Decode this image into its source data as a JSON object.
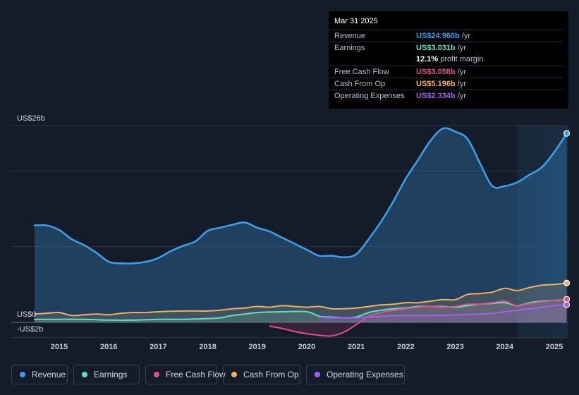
{
  "tooltip": {
    "date": "Mar 31 2025",
    "rows": [
      {
        "label": "Revenue",
        "value": "US$24.960b",
        "unit": " /yr",
        "color": "#3b9ee8"
      },
      {
        "label": "Earnings",
        "value": "US$3.031b",
        "unit": " /yr",
        "color": "#5fe0c6"
      },
      {
        "label": "",
        "value": "12.1%",
        "unit": " profit margin",
        "color": "#ffffff"
      },
      {
        "label": "Free Cash Flow",
        "value": "US$3.058b",
        "unit": " /yr",
        "color": "#e0508f"
      },
      {
        "label": "Cash From Op",
        "value": "US$5.196b",
        "unit": " /yr",
        "color": "#f0b060"
      },
      {
        "label": "Operating Expenses",
        "value": "US$2.334b",
        "unit": " /yr",
        "color": "#a65ef0"
      }
    ]
  },
  "legend": [
    {
      "label": "Revenue",
      "color": "#3b9ee8"
    },
    {
      "label": "Earnings",
      "color": "#5fe0c6"
    },
    {
      "label": "Free Cash Flow",
      "color": "#e0508f"
    },
    {
      "label": "Cash From Op",
      "color": "#f0b060"
    },
    {
      "label": "Operating Expenses",
      "color": "#a65ef0"
    }
  ],
  "chart_data": {
    "type": "area",
    "title": "",
    "y_top_label": "US$26b",
    "y_zero_label": "US$0",
    "y_bottom_label": "-US$2b",
    "ylim": [
      -2,
      26
    ],
    "xlim": [
      2014.5,
      2025.25
    ],
    "forecast_shade_start": 2024.25,
    "x_ticks": [
      2015,
      2016,
      2017,
      2018,
      2019,
      2020,
      2021,
      2022,
      2023,
      2024,
      2025
    ],
    "x_tick_labels": [
      "2015",
      "2016",
      "2017",
      "2018",
      "2019",
      "2020",
      "2021",
      "2022",
      "2023",
      "2024",
      "2025"
    ],
    "series": [
      {
        "name": "Revenue",
        "color": "#3b9ee8",
        "fill": true,
        "points": [
          [
            2014.5,
            12.8
          ],
          [
            2014.75,
            12.8
          ],
          [
            2015.0,
            12.2
          ],
          [
            2015.25,
            11.0
          ],
          [
            2015.5,
            10.2
          ],
          [
            2015.75,
            9.2
          ],
          [
            2016.0,
            8.0
          ],
          [
            2016.25,
            7.8
          ],
          [
            2016.5,
            7.8
          ],
          [
            2016.75,
            8.0
          ],
          [
            2017.0,
            8.5
          ],
          [
            2017.25,
            9.4
          ],
          [
            2017.5,
            10.1
          ],
          [
            2017.75,
            10.7
          ],
          [
            2018.0,
            12.1
          ],
          [
            2018.25,
            12.5
          ],
          [
            2018.5,
            12.9
          ],
          [
            2018.75,
            13.2
          ],
          [
            2019.0,
            12.5
          ],
          [
            2019.25,
            12.0
          ],
          [
            2019.5,
            11.2
          ],
          [
            2019.75,
            10.4
          ],
          [
            2020.0,
            9.6
          ],
          [
            2020.25,
            8.8
          ],
          [
            2020.5,
            8.8
          ],
          [
            2020.75,
            8.6
          ],
          [
            2021.0,
            9.0
          ],
          [
            2021.25,
            11.0
          ],
          [
            2021.5,
            13.3
          ],
          [
            2021.75,
            16.0
          ],
          [
            2022.0,
            19.0
          ],
          [
            2022.25,
            21.5
          ],
          [
            2022.5,
            24.0
          ],
          [
            2022.75,
            25.6
          ],
          [
            2023.0,
            25.2
          ],
          [
            2023.25,
            24.2
          ],
          [
            2023.5,
            21.0
          ],
          [
            2023.75,
            18.0
          ],
          [
            2024.0,
            18.0
          ],
          [
            2024.25,
            18.5
          ],
          [
            2024.5,
            19.5
          ],
          [
            2024.75,
            20.5
          ],
          [
            2025.0,
            22.5
          ],
          [
            2025.25,
            24.96
          ]
        ]
      },
      {
        "name": "Earnings",
        "color": "#5fe0c6",
        "fill": true,
        "points": [
          [
            2014.5,
            0.4
          ],
          [
            2015.0,
            0.4
          ],
          [
            2015.5,
            0.4
          ],
          [
            2016.0,
            0.3
          ],
          [
            2016.5,
            0.3
          ],
          [
            2017.0,
            0.4
          ],
          [
            2017.5,
            0.4
          ],
          [
            2018.0,
            0.5
          ],
          [
            2018.25,
            0.6
          ],
          [
            2018.5,
            0.9
          ],
          [
            2018.75,
            1.1
          ],
          [
            2019.0,
            1.3
          ],
          [
            2019.5,
            1.4
          ],
          [
            2020.0,
            1.4
          ],
          [
            2020.25,
            0.8
          ],
          [
            2020.5,
            0.7
          ],
          [
            2020.75,
            0.6
          ],
          [
            2021.0,
            0.7
          ],
          [
            2021.25,
            1.3
          ],
          [
            2021.5,
            1.6
          ],
          [
            2021.75,
            1.8
          ],
          [
            2022.0,
            1.9
          ],
          [
            2022.25,
            2.1
          ],
          [
            2022.5,
            2.1
          ],
          [
            2022.75,
            2.1
          ],
          [
            2023.0,
            2.0
          ],
          [
            2023.25,
            2.2
          ],
          [
            2023.5,
            2.4
          ],
          [
            2023.75,
            2.5
          ],
          [
            2024.0,
            2.6
          ],
          [
            2024.25,
            2.2
          ],
          [
            2024.5,
            2.6
          ],
          [
            2024.75,
            2.8
          ],
          [
            2025.0,
            2.9
          ],
          [
            2025.25,
            3.031
          ]
        ]
      },
      {
        "name": "Free Cash Flow",
        "color": "#e0508f",
        "fill": true,
        "points": [
          [
            2019.25,
            -0.5
          ],
          [
            2019.5,
            -0.8
          ],
          [
            2019.75,
            -1.2
          ],
          [
            2020.0,
            -1.5
          ],
          [
            2020.25,
            -1.7
          ],
          [
            2020.5,
            -1.8
          ],
          [
            2020.75,
            -1.3
          ],
          [
            2021.0,
            -0.3
          ],
          [
            2021.25,
            0.8
          ],
          [
            2021.5,
            1.3
          ],
          [
            2021.75,
            1.6
          ],
          [
            2022.0,
            1.8
          ],
          [
            2022.25,
            2.0
          ],
          [
            2022.5,
            2.1
          ],
          [
            2022.75,
            2.0
          ],
          [
            2023.0,
            2.1
          ],
          [
            2023.25,
            2.4
          ],
          [
            2023.5,
            2.4
          ],
          [
            2023.75,
            2.6
          ],
          [
            2024.0,
            2.8
          ],
          [
            2024.25,
            2.2
          ],
          [
            2024.5,
            2.5
          ],
          [
            2024.75,
            2.7
          ],
          [
            2025.0,
            2.9
          ],
          [
            2025.25,
            3.058
          ]
        ]
      },
      {
        "name": "Cash From Op",
        "color": "#f0b060",
        "fill": true,
        "points": [
          [
            2014.5,
            1.1
          ],
          [
            2014.75,
            1.2
          ],
          [
            2015.0,
            1.3
          ],
          [
            2015.25,
            0.9
          ],
          [
            2015.5,
            1.0
          ],
          [
            2015.75,
            1.1
          ],
          [
            2016.0,
            1.0
          ],
          [
            2016.25,
            1.2
          ],
          [
            2016.5,
            1.3
          ],
          [
            2016.75,
            1.3
          ],
          [
            2017.0,
            1.4
          ],
          [
            2017.5,
            1.5
          ],
          [
            2018.0,
            1.5
          ],
          [
            2018.25,
            1.6
          ],
          [
            2018.5,
            1.8
          ],
          [
            2018.75,
            1.9
          ],
          [
            2019.0,
            2.1
          ],
          [
            2019.25,
            2.0
          ],
          [
            2019.5,
            2.2
          ],
          [
            2019.75,
            2.1
          ],
          [
            2020.0,
            2.0
          ],
          [
            2020.25,
            2.1
          ],
          [
            2020.5,
            1.8
          ],
          [
            2020.75,
            1.8
          ],
          [
            2021.0,
            1.9
          ],
          [
            2021.25,
            2.1
          ],
          [
            2021.5,
            2.3
          ],
          [
            2021.75,
            2.4
          ],
          [
            2022.0,
            2.6
          ],
          [
            2022.25,
            2.6
          ],
          [
            2022.5,
            2.8
          ],
          [
            2022.75,
            3.0
          ],
          [
            2023.0,
            3.0
          ],
          [
            2023.25,
            3.7
          ],
          [
            2023.5,
            3.8
          ],
          [
            2023.75,
            4.0
          ],
          [
            2024.0,
            4.5
          ],
          [
            2024.25,
            4.2
          ],
          [
            2024.5,
            4.6
          ],
          [
            2024.75,
            4.9
          ],
          [
            2025.0,
            5.0
          ],
          [
            2025.25,
            5.196
          ]
        ]
      },
      {
        "name": "Operating Expenses",
        "color": "#a65ef0",
        "fill": true,
        "points": [
          [
            2020.25,
            0.7
          ],
          [
            2020.5,
            0.6
          ],
          [
            2020.75,
            0.6
          ],
          [
            2021.0,
            0.6
          ],
          [
            2021.25,
            0.7
          ],
          [
            2021.5,
            0.8
          ],
          [
            2022.0,
            0.9
          ],
          [
            2022.5,
            0.9
          ],
          [
            2023.0,
            1.0
          ],
          [
            2023.5,
            1.1
          ],
          [
            2023.75,
            1.2
          ],
          [
            2024.0,
            1.4
          ],
          [
            2024.25,
            1.6
          ],
          [
            2024.5,
            1.8
          ],
          [
            2024.75,
            2.0
          ],
          [
            2025.0,
            2.2
          ],
          [
            2025.25,
            2.334
          ]
        ]
      }
    ]
  }
}
